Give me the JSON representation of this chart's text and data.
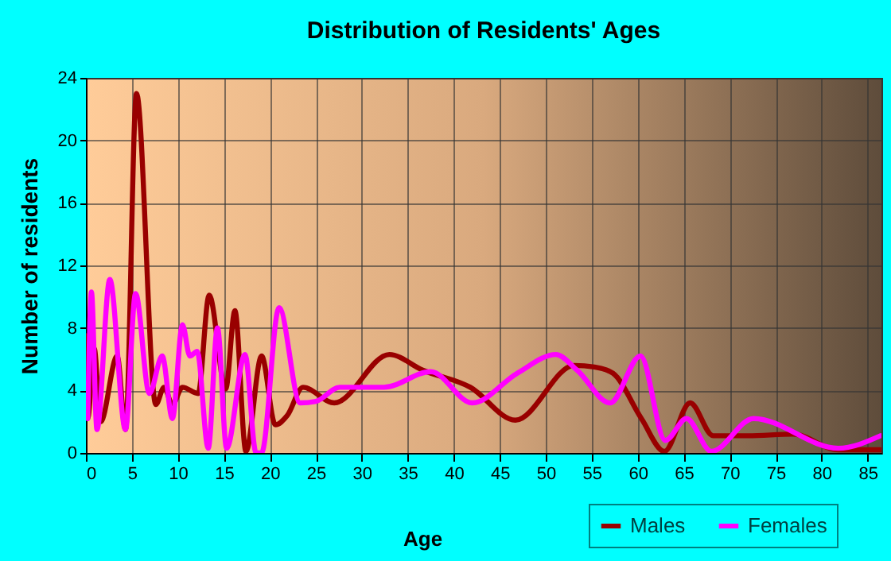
{
  "chart_data": {
    "type": "line",
    "title": "Distribution of Residents' Ages",
    "xlabel": "Age",
    "ylabel": "Number of residents",
    "xlim": [
      0,
      86.5
    ],
    "xticks": [
      0,
      5,
      10,
      15,
      20,
      25,
      30,
      35,
      40,
      45,
      50,
      55,
      60,
      65,
      70,
      75,
      80,
      85
    ],
    "ylim": [
      0,
      24
    ],
    "yticks": [
      0,
      4,
      8,
      12,
      16,
      20,
      24
    ],
    "grid": true,
    "legend": "bottom",
    "line_style": "solid",
    "marker": "none",
    "series": [
      {
        "name": "Males",
        "color": "#990000",
        "x": [
          0,
          0.2,
          0.9,
          1.6,
          3.4,
          4.3,
          5.5,
          7.6,
          8.5,
          9.4,
          10.5,
          12.2,
          13.4,
          15.2,
          16.2,
          17.4,
          19.1,
          20.6,
          21.9,
          23.6,
          27,
          33,
          36.6,
          41.8,
          46.7,
          53.1,
          55.3,
          57.3,
          60.4,
          62.9,
          65.7,
          68.2,
          72,
          76.9,
          81.8,
          86.4
        ],
        "values": [
          7.5,
          2.2,
          6.7,
          2,
          6.2,
          1.5,
          23,
          3.1,
          4.2,
          3.1,
          4.2,
          3.8,
          10.1,
          4.1,
          9.1,
          0.1,
          6.2,
          1.8,
          2.4,
          4.2,
          3.2,
          6.3,
          5.3,
          4.2,
          2.1,
          5.6,
          5.5,
          5.1,
          2.2,
          0.1,
          3.2,
          1.1,
          1.1,
          1.2,
          0.2,
          0.2
        ]
      },
      {
        "name": "Females",
        "color": "#ff00ff",
        "x": [
          0.2,
          0.6,
          1.2,
          2.6,
          4.3,
          5.4,
          6.9,
          8.3,
          9.4,
          10.5,
          11.3,
          12.1,
          13.3,
          14.3,
          15.3,
          17.3,
          18.5,
          19.1,
          21,
          23.3,
          25,
          27.6,
          32.4,
          37.5,
          42,
          46.9,
          51.1,
          53.4,
          57,
          60.3,
          63,
          65.3,
          68,
          72.6,
          81.8,
          86.4
        ],
        "values": [
          2.2,
          10.3,
          1.5,
          11.1,
          1.5,
          10.2,
          3.8,
          6.2,
          2.2,
          8.2,
          6.2,
          6.5,
          0.3,
          8,
          0.3,
          6.3,
          0,
          0,
          9.3,
          3.2,
          3.3,
          4.2,
          4.2,
          5.2,
          3.2,
          5.1,
          6.3,
          5.3,
          3.2,
          6.2,
          0.8,
          2.2,
          0.1,
          2.2,
          0.3,
          1.1
        ]
      }
    ]
  }
}
